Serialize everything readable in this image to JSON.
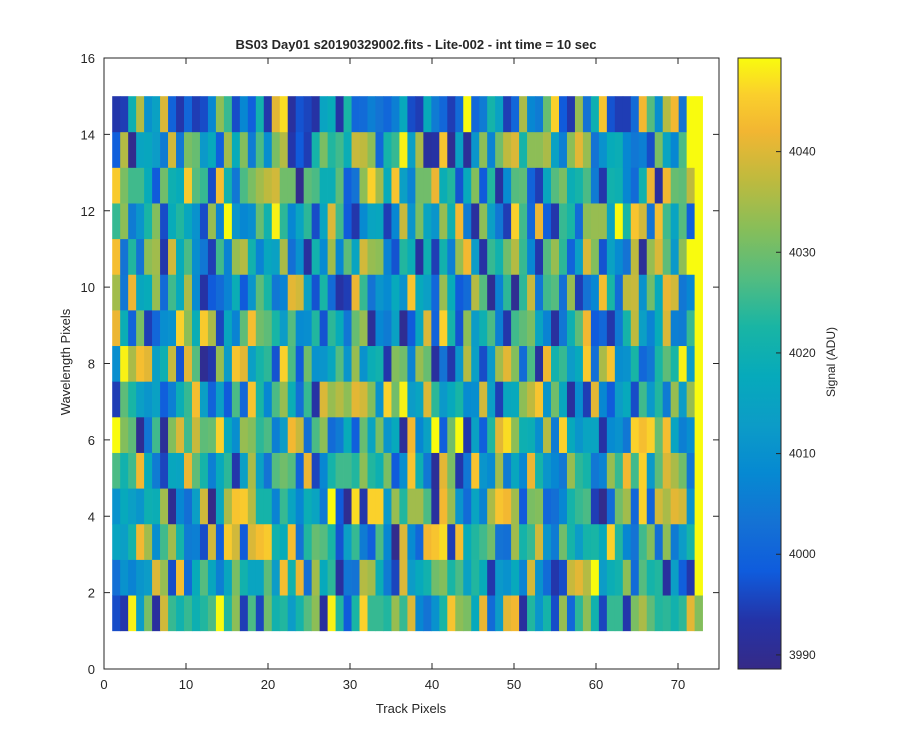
{
  "chart_data": {
    "type": "heatmap",
    "title": "BS03 Day01  s20190329002.fits - Lite-002 - int time = 10 sec",
    "xlabel": "Track Pixels",
    "ylabel": "Wavelength Pixels",
    "colorbar_label": "Signal (ADU)",
    "xlim": [
      0,
      75
    ],
    "ylim": [
      0,
      16
    ],
    "x_ticks": [
      0,
      10,
      20,
      30,
      40,
      50,
      60,
      70
    ],
    "y_ticks": [
      0,
      2,
      4,
      6,
      8,
      10,
      12,
      14,
      16
    ],
    "colorbar_ticks": [
      3990,
      4000,
      4010,
      4020,
      4030,
      4040
    ],
    "colorbar_range": [
      3988.6,
      4049.3
    ],
    "colormap": "parula",
    "grid": false,
    "x_range_data": [
      1,
      73
    ],
    "y_range_data": [
      1,
      15
    ],
    "rows": [
      "1.mDY,bRMRLPTnP[/T0XMPDNU[,mP3OjRRP\\Rc>9AOh[YIe7Ddf,PBN1\\6Q[M0RR.Y^VPQMQdZ",
      "8A=BDc\\1g7JUH<HYMGGVDgMe8]IQ,:9_]K;0cDIMXZOTFPJ.CAI=bA7.1ad_nDKM[7UNP,E4.",
      "GENf]@S]N;<1b4ib3cgiMJg9PWUO2ER;4T>)c?6fhk/gJPSX98]NRbB;XNDNOIjP>9SZ8[;DN",
      "AIEBLK]*>8Eb&H^hi_NN=RG>KG;n3*k.jjC\\P]]T,f\\B7G=^hf]3YZ68>NRT/)7X]6j5b^dbA",
      "TMSfJ;0HGeVN<IQ.E^F9UXU5e0>NSSP[PLY3@hL:+dY.:hB?];H>eNB>:\\QN:=\\RfSjCVc^X:",
      "nZV*:S+ZcSaVWjI@\\ZQT<Dfa8T[7;J4WGYBI+f>Fn4Xn.F4Pdk[LK@_;jIBGG-?A:jgjWgG<@",
      "/VOEBF4<KRgE5E3T6hO>T\\K8R-c\\_[dbZAjXmDGcQCIO?@bE/HI[`hBXH,@/d>3DI1SCP;\\D\\",
      "@m^gdELa2dU*.\\DhdENQ2jT3XABHUB\\AKM.ZX=\\W,9.B_E1C]dZ7T,fMRDIi8^h@AO6:OVOmD",
      "eK5Y/6@Aj[Ki^0H=VgXVODU?@P2QJ:W\\+>;F*3Hc5jN2[DLT<.SVYG=,:LVf36.;N`E=Jc<;R",
      "]:eHJ\\7SI^?-37=K3BVO:=dbF2O7-/eR9B?IAhIE6\\J37_U*=Q*Qa:SU8\\/9>gO7`aAXIeb:>",
      "g9P9[].bJT@:/S=\\_M=HF^8A,M?]>VGb\\[=2PK,L/M<\\fD-RMX_R>.U\\Q5EcZ2F?9`+\\cVC[",
      "R[;BOZ1JPHA1\\=nB>@WMmQ>GQ1GcS3.?GH/>aBYGB\\Lf;,[E:/jS6e4.RO7[\\\\GnOhb9gSGU4",
      "iYSSJ3XLJiUR1gM:TY]`bXX)VTKKV49[j]JhE=XXeKP2IZ3P,?UV5/HUYKNT;.ML>7Me,fWV`",
      "4_)GHD;b:YWCI4]JZ;T@Y_.3/NYPSKa`[6NRmE^,-h*F+B[=X`cN[[^F<[d\\9AJK>:<1YG>T",
      "./L_AFc5.6/1>[R1>4M.dk,20-GJ-O67<96<I1/J;6/7n6;NF/6^>;Wj3.\\9Lh2//7fU@_f9"
    ]
  }
}
